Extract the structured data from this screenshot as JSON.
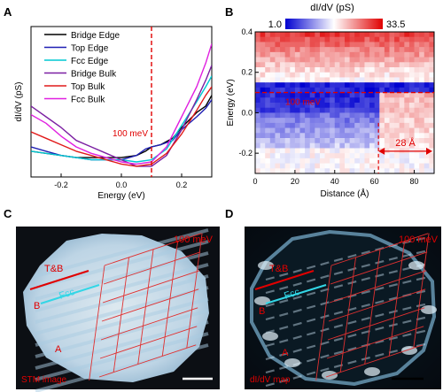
{
  "panels": {
    "a": {
      "label": "A"
    },
    "b": {
      "label": "B"
    },
    "c": {
      "label": "C"
    },
    "d": {
      "label": "D"
    }
  },
  "chart_data": [
    {
      "type": "line",
      "panel": "A",
      "xlabel": "Energy (eV)",
      "ylabel": "dI/dV (pS)",
      "xlim": [
        -0.3,
        0.3
      ],
      "ylim": [
        0,
        70
      ],
      "xticks": [
        "-0.2",
        "0.0",
        "0.2"
      ],
      "xtick_values": [
        -0.2,
        0.0,
        0.2
      ],
      "annotation": {
        "text": "100 meV",
        "x": 0.1
      },
      "legend_position": "top-right",
      "series": [
        {
          "name": "Bridge Edge",
          "color": "#000000",
          "points": [
            [
              -0.3,
              12
            ],
            [
              -0.25,
              11
            ],
            [
              -0.2,
              10
            ],
            [
              -0.15,
              9
            ],
            [
              -0.1,
              9
            ],
            [
              -0.05,
              9
            ],
            [
              0.0,
              9
            ],
            [
              0.05,
              10
            ],
            [
              0.08,
              12
            ],
            [
              0.1,
              14
            ],
            [
              0.13,
              15
            ],
            [
              0.17,
              18
            ],
            [
              0.2,
              23
            ],
            [
              0.25,
              30
            ],
            [
              0.28,
              33
            ],
            [
              0.3,
              38
            ]
          ]
        },
        {
          "name": "Top Edge",
          "color": "#1f1fb4",
          "points": [
            [
              -0.3,
              14
            ],
            [
              -0.25,
              12
            ],
            [
              -0.2,
              10
            ],
            [
              -0.15,
              9
            ],
            [
              -0.1,
              8
            ],
            [
              -0.05,
              8
            ],
            [
              0.0,
              8
            ],
            [
              0.05,
              10
            ],
            [
              0.08,
              13
            ],
            [
              0.1,
              14
            ],
            [
              0.13,
              15
            ],
            [
              0.17,
              17
            ],
            [
              0.2,
              22
            ],
            [
              0.25,
              28
            ],
            [
              0.28,
              32
            ],
            [
              0.3,
              36
            ]
          ]
        },
        {
          "name": "Fcc Edge",
          "color": "#00c8d2",
          "points": [
            [
              -0.3,
              12
            ],
            [
              -0.25,
              11
            ],
            [
              -0.2,
              10
            ],
            [
              -0.15,
              9
            ],
            [
              -0.1,
              8
            ],
            [
              -0.05,
              8
            ],
            [
              0.0,
              8
            ],
            [
              0.05,
              7
            ],
            [
              0.1,
              8
            ],
            [
              0.15,
              13
            ],
            [
              0.2,
              24
            ],
            [
              0.25,
              35
            ],
            [
              0.28,
              42
            ],
            [
              0.3,
              47
            ]
          ]
        },
        {
          "name": "Bridge Bulk",
          "color": "#7b1fa2",
          "points": [
            [
              -0.3,
              33
            ],
            [
              -0.25,
              28
            ],
            [
              -0.2,
              23
            ],
            [
              -0.15,
              17
            ],
            [
              -0.1,
              14
            ],
            [
              -0.05,
              11
            ],
            [
              0.0,
              8
            ],
            [
              0.05,
              5
            ],
            [
              0.1,
              5
            ],
            [
              0.15,
              10
            ],
            [
              0.2,
              22
            ],
            [
              0.25,
              36
            ],
            [
              0.28,
              45
            ],
            [
              0.3,
              52
            ]
          ]
        },
        {
          "name": "Top Bulk",
          "color": "#e11a1a",
          "points": [
            [
              -0.3,
              21
            ],
            [
              -0.25,
              18
            ],
            [
              -0.2,
              15
            ],
            [
              -0.15,
              12
            ],
            [
              -0.1,
              10
            ],
            [
              -0.05,
              8
            ],
            [
              0.0,
              6
            ],
            [
              0.05,
              5
            ],
            [
              0.1,
              6
            ],
            [
              0.15,
              11
            ],
            [
              0.2,
              20
            ],
            [
              0.25,
              31
            ],
            [
              0.28,
              38
            ],
            [
              0.3,
              42
            ]
          ]
        },
        {
          "name": "Fcc Bulk",
          "color": "#e020e0",
          "points": [
            [
              -0.3,
              29
            ],
            [
              -0.25,
              25
            ],
            [
              -0.2,
              19
            ],
            [
              -0.15,
              14
            ],
            [
              -0.1,
              11
            ],
            [
              -0.05,
              9
            ],
            [
              0.0,
              7
            ],
            [
              0.05,
              6
            ],
            [
              0.1,
              7
            ],
            [
              0.15,
              14
            ],
            [
              0.2,
              28
            ],
            [
              0.25,
              42
            ],
            [
              0.28,
              53
            ],
            [
              0.3,
              62
            ]
          ]
        }
      ]
    },
    {
      "type": "heatmap",
      "panel": "B",
      "title": "dI/dV (pS)",
      "colorbar": {
        "min": "1.0",
        "max": "33.5",
        "low_color": "#0000d0",
        "mid_color": "#ffffff",
        "high_color": "#e00000"
      },
      "xlabel": "Distance (Å)",
      "ylabel": "Energy (eV)",
      "xlim": [
        0,
        90
      ],
      "ylim": [
        -0.3,
        0.4
      ],
      "xticks": [
        "0",
        "20",
        "40",
        "60",
        "80"
      ],
      "xtick_values": [
        0,
        20,
        40,
        60,
        80
      ],
      "yticks": [
        "0.4",
        "0.2",
        "0.0",
        "-0.2"
      ],
      "ytick_values": [
        0.4,
        0.2,
        0.0,
        -0.2
      ],
      "annotation_energy": {
        "text": "100 meV",
        "y": 0.1
      },
      "annotation_width": {
        "text": "28 Å",
        "x_start": 62,
        "x_end": 90
      }
    }
  ],
  "image_c": {
    "energy_label": "100 meV",
    "caption": "STM image",
    "label_tb": "T&B",
    "label_fcc": "Fcc",
    "label_b": "B",
    "label_a": "A"
  },
  "image_d": {
    "energy_label": "100 meV",
    "caption": "dI/dV map",
    "label_tb": "T&B",
    "label_fcc": "Fcc",
    "label_b": "B",
    "label_a": "A"
  },
  "colors": {
    "annotation_red": "#e00000",
    "fcc_cyan": "#33d6e6",
    "grid_red": "#e03030"
  }
}
